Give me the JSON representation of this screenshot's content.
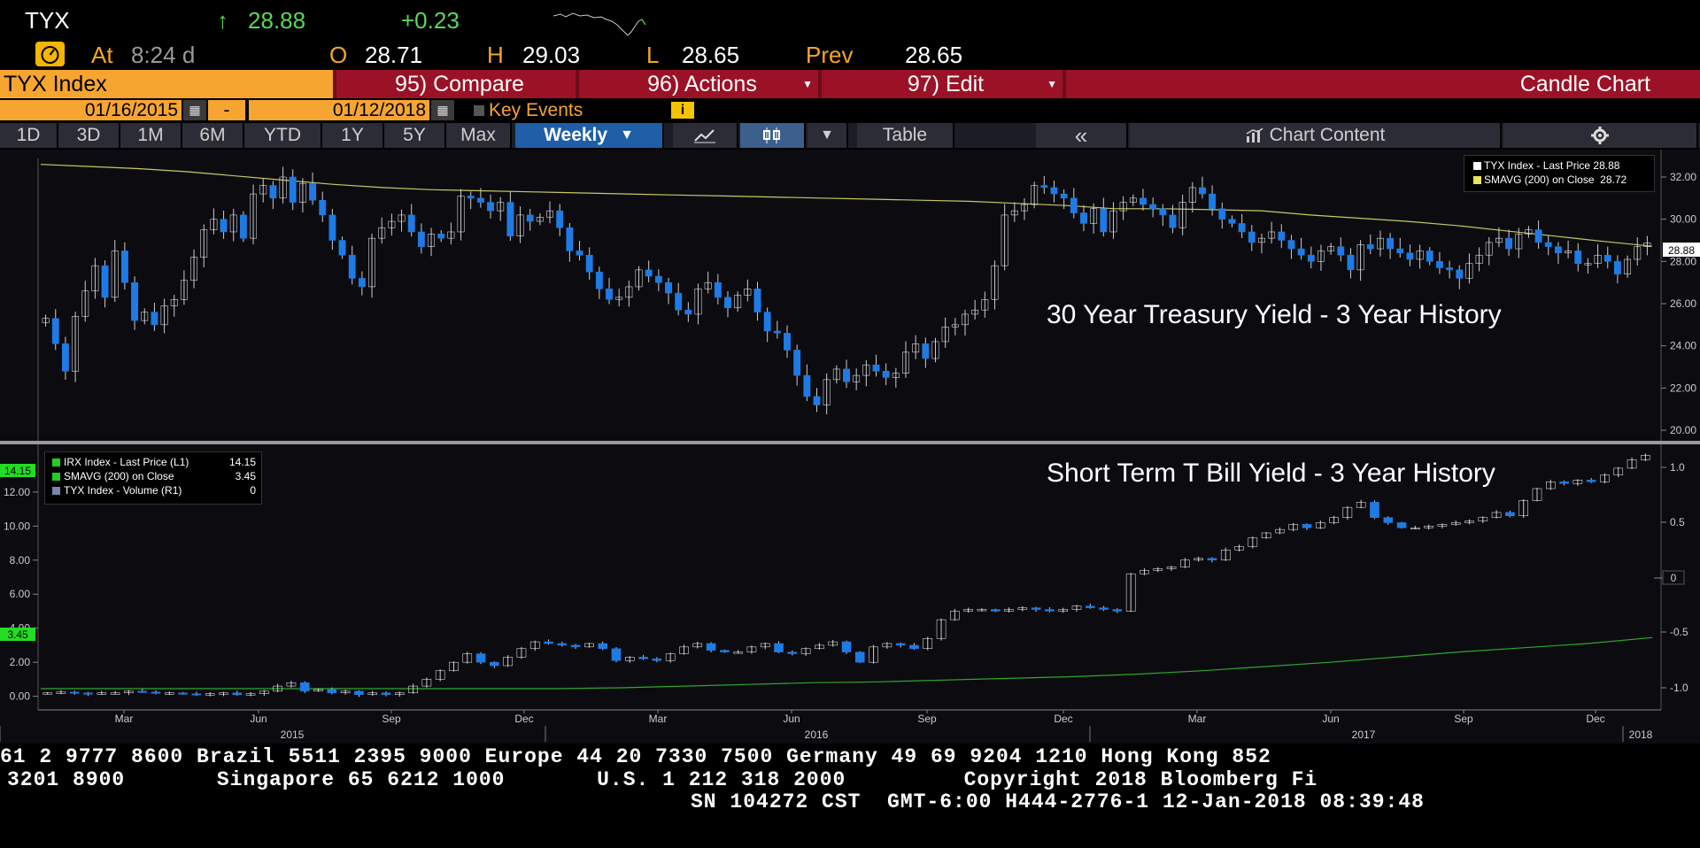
{
  "header": {
    "ticker": "TYX",
    "arrow": "↑",
    "last": "28.88",
    "change": "+0.23",
    "at_label": "At",
    "time": "8:24 d",
    "open_label": "O",
    "open": "28.71",
    "high_label": "H",
    "high": "29.03",
    "low_label": "L",
    "low": "28.65",
    "prev_label": "Prev",
    "prev": "28.65",
    "alert_icon": "gauge-icon"
  },
  "commandbar": {
    "security": "TYX Index",
    "compare": "95) Compare",
    "actions": "96) Actions",
    "edit": "97) Edit",
    "chart_type": "Candle Chart"
  },
  "datebar": {
    "start_date": "01/16/2015",
    "separator": "-",
    "end_date": "01/12/2018",
    "key_events": "Key Events",
    "info_icon": "i"
  },
  "toolbar": {
    "periods": [
      "1D",
      "3D",
      "1M",
      "6M",
      "YTD",
      "1Y",
      "5Y",
      "Max"
    ],
    "frequency": "Weekly",
    "table": "Table",
    "collapse": "«",
    "chart_content": "Chart Content",
    "settings_icon": "gear-icon"
  },
  "colors": {
    "accent_orange": "#f7a531",
    "bar_red": "#9b1226",
    "candle_down": "#1e7be6",
    "candle_up": "#ffffff",
    "sma_upper": "#c8c864",
    "sma_lower": "#2ea82e"
  },
  "chart_data": [
    {
      "type": "candlestick",
      "title": "30 Year Treasury Yield - 3 Year History",
      "legend": [
        {
          "name": "TYX Index - Last Price",
          "value": "28.88",
          "color": "#ffffff"
        },
        {
          "name": "SMAVG (200) on Close",
          "value": "28.72",
          "color": "#e6e65a"
        }
      ],
      "y_ticks": [
        "32.00",
        "30.00",
        "28.00",
        "26.00",
        "24.00",
        "22.00",
        "20.00"
      ],
      "ylim": [
        19.5,
        33.3
      ],
      "last_price_label": "28.88",
      "close_series": [
        25.3,
        24.1,
        22.8,
        25.4,
        26.6,
        27.8,
        26.3,
        28.5,
        27.0,
        25.2,
        25.6,
        25.0,
        25.9,
        26.2,
        27.1,
        28.2,
        29.5,
        30.0,
        29.4,
        30.2,
        29.1,
        31.2,
        31.6,
        31.0,
        32.0,
        30.8,
        31.7,
        30.9,
        30.2,
        29.0,
        28.3,
        27.2,
        26.8,
        29.1,
        29.6,
        29.9,
        30.2,
        29.4,
        28.7,
        29.3,
        29.1,
        29.4,
        31.1,
        31.0,
        30.8,
        30.4,
        30.8,
        29.2,
        30.2,
        29.9,
        30.1,
        30.4,
        29.6,
        28.5,
        28.3,
        27.5,
        26.7,
        26.2,
        26.3,
        26.8,
        27.6,
        27.3,
        27.0,
        26.5,
        25.7,
        25.5,
        26.7,
        27.0,
        26.3,
        25.8,
        26.4,
        26.7,
        25.6,
        24.7,
        24.6,
        23.8,
        22.6,
        21.6,
        21.2,
        22.4,
        22.9,
        22.3,
        22.6,
        23.1,
        22.8,
        22.5,
        22.7,
        23.7,
        24.1,
        23.4,
        24.2,
        24.9,
        25.0,
        25.5,
        25.7,
        26.2,
        27.8,
        30.2,
        30.4,
        30.7,
        31.6,
        31.5,
        31.2,
        31.0,
        30.3,
        29.8,
        30.5,
        29.4,
        30.4,
        30.8,
        31.0,
        30.7,
        30.5,
        30.2,
        29.6,
        30.8,
        31.5,
        31.2,
        30.5,
        30.0,
        29.8,
        29.4,
        28.9,
        29.1,
        29.4,
        29.0,
        28.6,
        28.3,
        28.0,
        28.5,
        28.7,
        28.3,
        27.6,
        28.8,
        28.6,
        29.1,
        28.6,
        28.4,
        28.1,
        28.5,
        28.0,
        27.7,
        27.6,
        27.2,
        27.9,
        28.3,
        28.9,
        29.1,
        28.6,
        29.3,
        29.5,
        28.9,
        28.7,
        28.4,
        28.5,
        27.9,
        27.9,
        28.3,
        28.0,
        27.4,
        28.1,
        28.7,
        28.88
      ],
      "sma_series": [
        32.6,
        32.5,
        32.4,
        32.25,
        32.05,
        31.85,
        31.65,
        31.5,
        31.4,
        31.35,
        31.3,
        31.25,
        31.2,
        31.15,
        31.1,
        31.05,
        31.0,
        30.95,
        30.9,
        30.85,
        30.75,
        30.65,
        30.5,
        30.5,
        30.45,
        30.4,
        30.2,
        30.05,
        29.9,
        29.7,
        29.45,
        29.2,
        28.95,
        28.72
      ],
      "x_ticks_month": [
        "Mar",
        "Jun",
        "Sep",
        "Dec",
        "Mar",
        "Jun",
        "Sep",
        "Dec",
        "Mar",
        "Jun",
        "Sep",
        "Dec"
      ],
      "x_ticks_year": [
        "2015",
        "2016",
        "2017",
        "2018"
      ]
    },
    {
      "type": "candlestick",
      "title": "Short Term T Bill Yield - 3 Year History",
      "legend": [
        {
          "name": "IRX Index - Last Price (L1)",
          "value": "14.15",
          "color": "#22cc22"
        },
        {
          "name": "SMAVG (200) on Close",
          "value": "3.45",
          "color": "#22cc22"
        },
        {
          "name": "TYX Index - Volume (R1)",
          "value": "0",
          "color": "#7788aa"
        }
      ],
      "y_ticks_left": [
        "12.00",
        "10.00",
        "8.00",
        "6.00",
        "4.00",
        "2.00",
        "0.00"
      ],
      "y_ticks_right": [
        "1.0",
        "0.5",
        "0",
        "-0.5",
        "-1.0"
      ],
      "ylim": [
        -0.8,
        14.8
      ],
      "last_price_label": "14.15",
      "sma_label": "3.45",
      "right_zero_label": "0",
      "close_series": [
        0.2,
        0.25,
        0.2,
        0.15,
        0.2,
        0.2,
        0.3,
        0.25,
        0.2,
        0.2,
        0.15,
        0.1,
        0.15,
        0.2,
        0.1,
        0.15,
        0.3,
        0.6,
        0.8,
        0.3,
        0.4,
        0.2,
        0.3,
        0.1,
        0.2,
        0.1,
        0.2,
        0.6,
        1.0,
        1.5,
        2.0,
        2.5,
        2.0,
        1.8,
        2.3,
        2.8,
        3.2,
        3.1,
        3.0,
        2.9,
        3.1,
        2.8,
        2.1,
        2.3,
        2.2,
        2.1,
        2.5,
        2.9,
        3.1,
        2.7,
        2.6,
        2.6,
        2.9,
        3.1,
        2.6,
        2.5,
        2.8,
        3.0,
        3.2,
        2.6,
        2.0,
        2.9,
        3.1,
        3.0,
        2.8,
        3.4,
        4.5,
        5.0,
        5.1,
        5.1,
        5.0,
        5.1,
        5.2,
        5.1,
        5.0,
        5.1,
        5.3,
        5.2,
        5.1,
        5.0,
        7.2,
        7.4,
        7.5,
        7.6,
        8.0,
        8.1,
        8.0,
        8.6,
        8.8,
        9.3,
        9.6,
        9.8,
        10.1,
        9.9,
        10.2,
        10.5,
        11.1,
        11.4,
        10.5,
        10.2,
        9.9,
        9.9,
        10.0,
        10.1,
        10.2,
        10.3,
        10.5,
        10.8,
        10.6,
        11.5,
        12.2,
        12.6,
        12.5,
        12.7,
        12.6,
        13.0,
        13.4,
        13.9,
        14.15
      ],
      "sma_series": [
        0.45,
        0.45,
        0.45,
        0.45,
        0.45,
        0.45,
        0.45,
        0.45,
        0.45,
        0.5,
        0.6,
        0.7,
        0.8,
        0.85,
        0.95,
        1.05,
        1.15,
        1.3,
        1.5,
        1.75,
        2.0,
        2.3,
        2.6,
        2.85,
        3.1,
        3.45
      ]
    }
  ],
  "ticker_tape": {
    "line1": "61 2 9777 8600 Brazil 5511 2395 9000 Europe 44 20 7330 7500 Germany 49 69 9204 1210 Hong Kong 852",
    "line2": "3201 8900       Singapore 65 6212 1000       U.S. 1 212 318 2000         Copyright 2018 Bloomberg Fi",
    "line3": "SN 104272 CST  GMT-6:00 H444-2776-1 12-Jan-2018 08:39:48"
  }
}
